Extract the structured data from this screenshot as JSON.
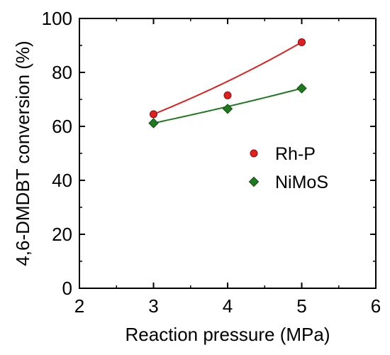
{
  "chart_data": {
    "type": "scatter",
    "title": "",
    "xlabel": "Reaction pressure (MPa)",
    "ylabel": "4,6-DMDBT conversion (%)",
    "xlim": [
      2,
      6
    ],
    "ylim": [
      0,
      100
    ],
    "xticks": [
      "2",
      "3",
      "4",
      "5",
      "6"
    ],
    "yticks": [
      "0",
      "20",
      "40",
      "60",
      "80",
      "100"
    ],
    "grid": false,
    "legend_position": "right",
    "series": [
      {
        "name": "Rh-P",
        "marker": "circle",
        "color": "#e02020",
        "x": [
          3,
          4,
          5
        ],
        "y": [
          64.5,
          71.5,
          91.2
        ],
        "fit": "curve"
      },
      {
        "name": "NiMoS",
        "marker": "diamond",
        "color": "#1f7a1f",
        "x": [
          3,
          4,
          5
        ],
        "y": [
          61.2,
          66.5,
          74.1
        ],
        "fit": "curve"
      }
    ]
  }
}
